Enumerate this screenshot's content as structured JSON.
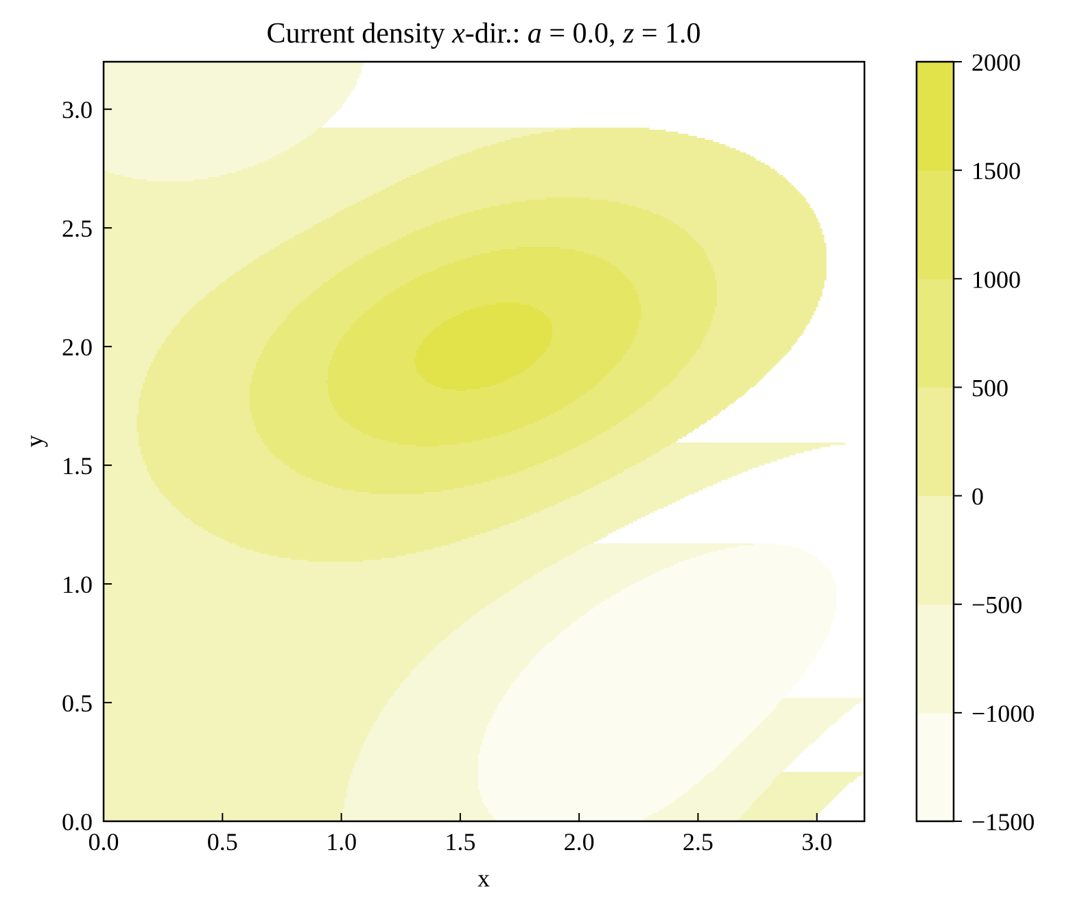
{
  "chart_data": {
    "type": "heatmap",
    "subtype": "filled-contour",
    "title": {
      "prefix": "Current density ",
      "var": "x",
      "middle": "-dir.: ",
      "param1_name": "a",
      "param1_value": " = 0.0, ",
      "param2_name": "z",
      "param2_value": " = 1.0"
    },
    "xlabel": "x",
    "ylabel": "y",
    "xlim": [
      0,
      3.2
    ],
    "ylim": [
      0,
      3.2
    ],
    "xticks": [
      0.0,
      0.5,
      1.0,
      1.5,
      2.0,
      2.5,
      3.0
    ],
    "yticks": [
      0.0,
      0.5,
      1.0,
      1.5,
      2.0,
      2.5,
      3.0
    ],
    "xtick_labels": [
      "0.0",
      "0.5",
      "1.0",
      "1.5",
      "2.0",
      "2.5",
      "3.0"
    ],
    "ytick_labels": [
      "0.0",
      "0.5",
      "1.0",
      "1.5",
      "2.0",
      "2.5",
      "3.0"
    ],
    "colorbar": {
      "ticks": [
        -1500,
        -1000,
        -500,
        0,
        500,
        1000,
        1500,
        2000
      ],
      "tick_labels": [
        "−1500",
        "−1000",
        "−500",
        "0",
        "500",
        "1000",
        "1500",
        "2000"
      ],
      "levels": [
        -1500,
        -1000,
        -500,
        0,
        500,
        1000,
        1500,
        2000
      ],
      "colors": [
        "#fcfdf0",
        "#f7f8d7",
        "#f3f4bb",
        "#eeee98",
        "#e8ea7c",
        "#e5e664",
        "#e2e24a"
      ]
    },
    "field_model": {
      "offset": -250,
      "features": [
        {
          "kind": "max",
          "x": 1.6,
          "y": 2.0,
          "amplitude": 1900,
          "sigma_major": 0.75,
          "sigma_minor": 0.42,
          "angle_deg": 18
        },
        {
          "kind": "min",
          "x": 2.35,
          "y": 0.55,
          "amplitude": -1300,
          "sigma_major": 0.85,
          "sigma_minor": 0.45,
          "angle_deg": 35
        },
        {
          "kind": "max",
          "x": 3.3,
          "y": -0.1,
          "amplitude": 650,
          "sigma_major": 0.45,
          "sigma_minor": 0.45,
          "angle_deg": 0
        },
        {
          "kind": "min",
          "x": 0.25,
          "y": 3.35,
          "amplitude": -750,
          "sigma_major": 0.6,
          "sigma_minor": 0.45,
          "angle_deg": -20
        }
      ]
    }
  }
}
